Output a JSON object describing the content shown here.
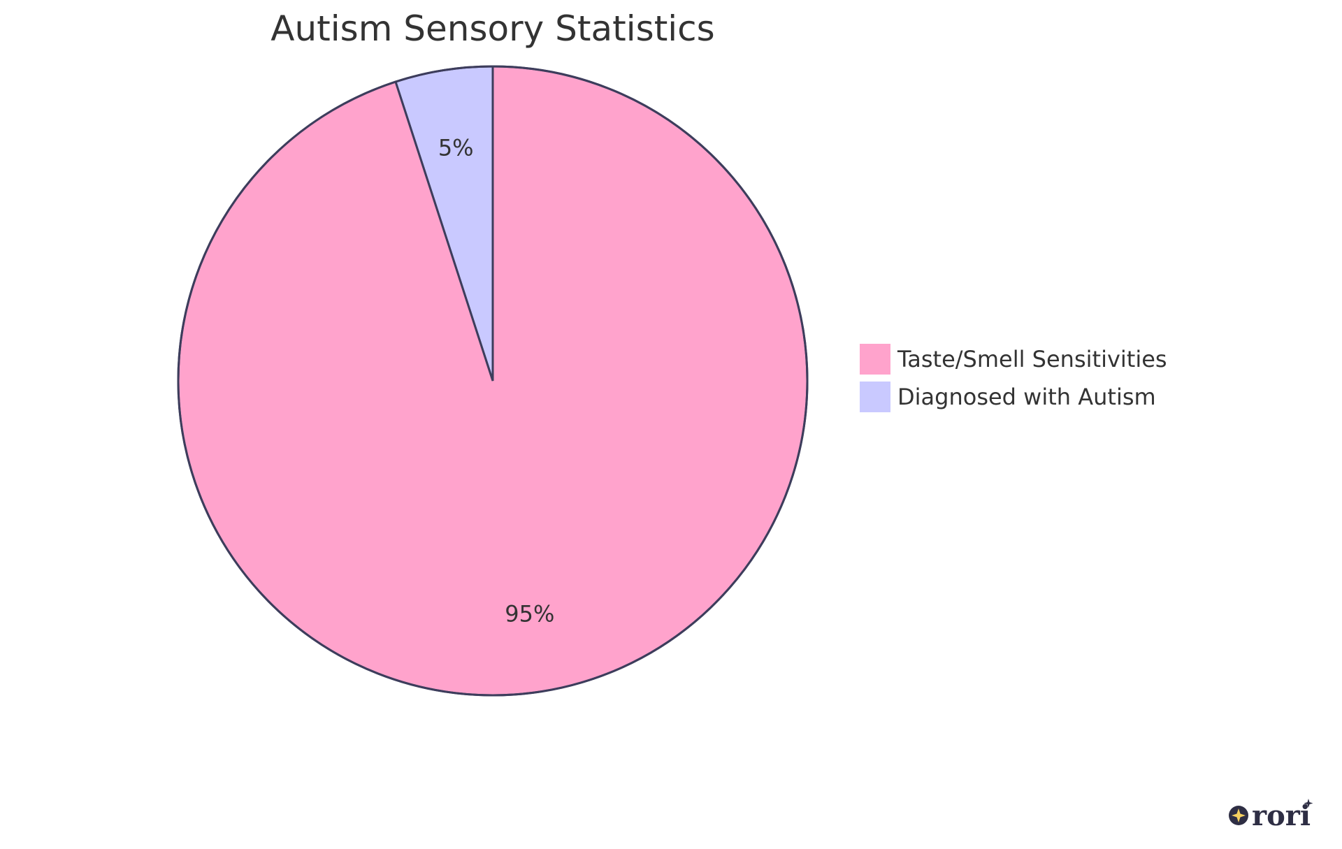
{
  "chart_data": {
    "type": "pie",
    "title": "Autism Sensory Statistics",
    "slices": [
      {
        "name": "Diagnosed with Autism",
        "value": 5,
        "label": "5%",
        "color": "#c9c9ff"
      },
      {
        "name": "Taste/Smell Sensitivities",
        "value": 95,
        "label": "95%",
        "color": "#ffa3cc"
      }
    ],
    "legend": {
      "placement": "right",
      "entries": [
        {
          "name": "Taste/Smell Sensitivities",
          "color": "#ffa3cc"
        },
        {
          "name": "Diagnosed with Autism",
          "color": "#c9c9ff"
        }
      ]
    },
    "stroke_color": "#3d3d5c"
  },
  "logo": {
    "text": "rori",
    "icon": "sparkle-circle-icon",
    "color": "#2e2e44",
    "accent": "#f5d060"
  }
}
